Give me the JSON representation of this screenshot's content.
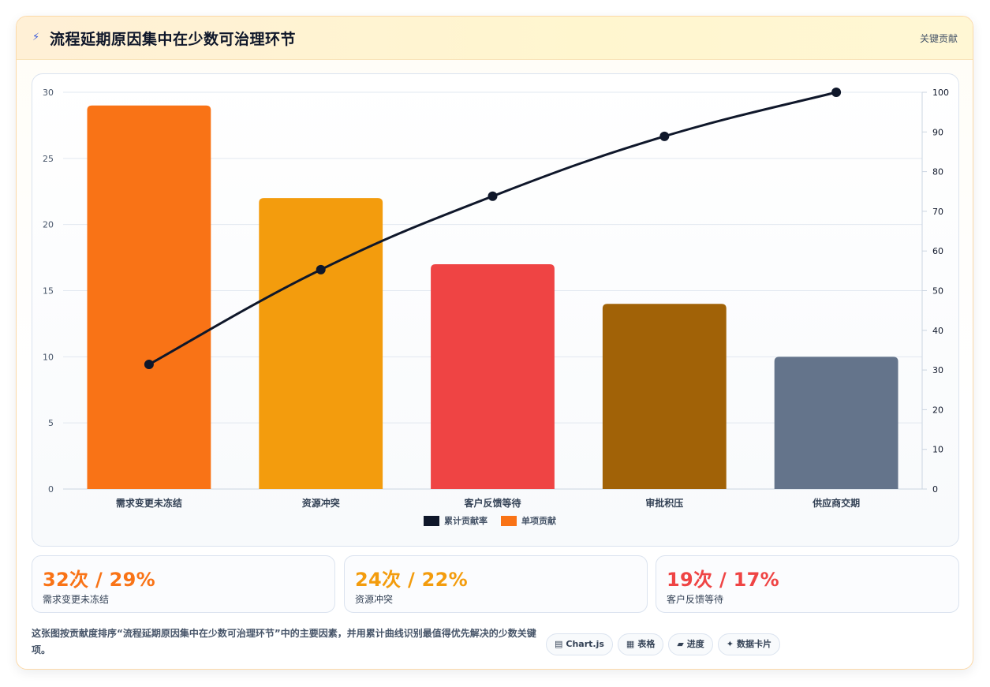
{
  "header": {
    "title": "流程延期原因集中在少数可治理环节",
    "tag": "关键贡献",
    "icon": "bolt-icon"
  },
  "chart_data": {
    "type": "bar",
    "categories": [
      "需求变更未冻结",
      "资源冲突",
      "客户反馈等待",
      "审批积压",
      "供应商交期"
    ],
    "series": [
      {
        "name": "单项贡献",
        "type": "bar",
        "axis": "left",
        "values": [
          29,
          22,
          17,
          14,
          10
        ],
        "colors": [
          "#f97316",
          "#f39c0d",
          "#ef4444",
          "#a16207",
          "#64748b"
        ]
      },
      {
        "name": "累计贡献率",
        "type": "line",
        "axis": "right",
        "values": [
          31.4,
          55.3,
          73.8,
          88.9,
          100
        ],
        "color": "#0f172a"
      }
    ],
    "ylim_left": [
      0,
      30
    ],
    "yticks_left": [
      0,
      5,
      10,
      15,
      20,
      25,
      30
    ],
    "ylim_right": [
      0,
      100
    ],
    "yticks_right": [
      0,
      10,
      20,
      30,
      40,
      50,
      60,
      70,
      80,
      90,
      100
    ],
    "legend": [
      {
        "label": "累计贡献率",
        "color": "#0f172a"
      },
      {
        "label": "单项贡献",
        "color": "#f97316"
      }
    ],
    "legend_position": "bottom",
    "grid": true
  },
  "stats": [
    {
      "value": "32次 / 29%",
      "label": "需求变更未冻结",
      "color": "#f97316"
    },
    {
      "value": "24次 / 22%",
      "label": "资源冲突",
      "color": "#f39c0d"
    },
    {
      "value": "19次 / 17%",
      "label": "客户反馈等待",
      "color": "#ef4444"
    }
  ],
  "description": "这张图按贡献度排序“流程延期原因集中在少数可治理环节”中的主要因素，并用累计曲线识别最值得优先解决的少数关键项。",
  "chips": [
    {
      "icon": "▤",
      "label": "Chart.js"
    },
    {
      "icon": "▦",
      "label": "表格"
    },
    {
      "icon": "▰",
      "label": "进度"
    },
    {
      "icon": "✦",
      "label": "数据卡片"
    }
  ]
}
